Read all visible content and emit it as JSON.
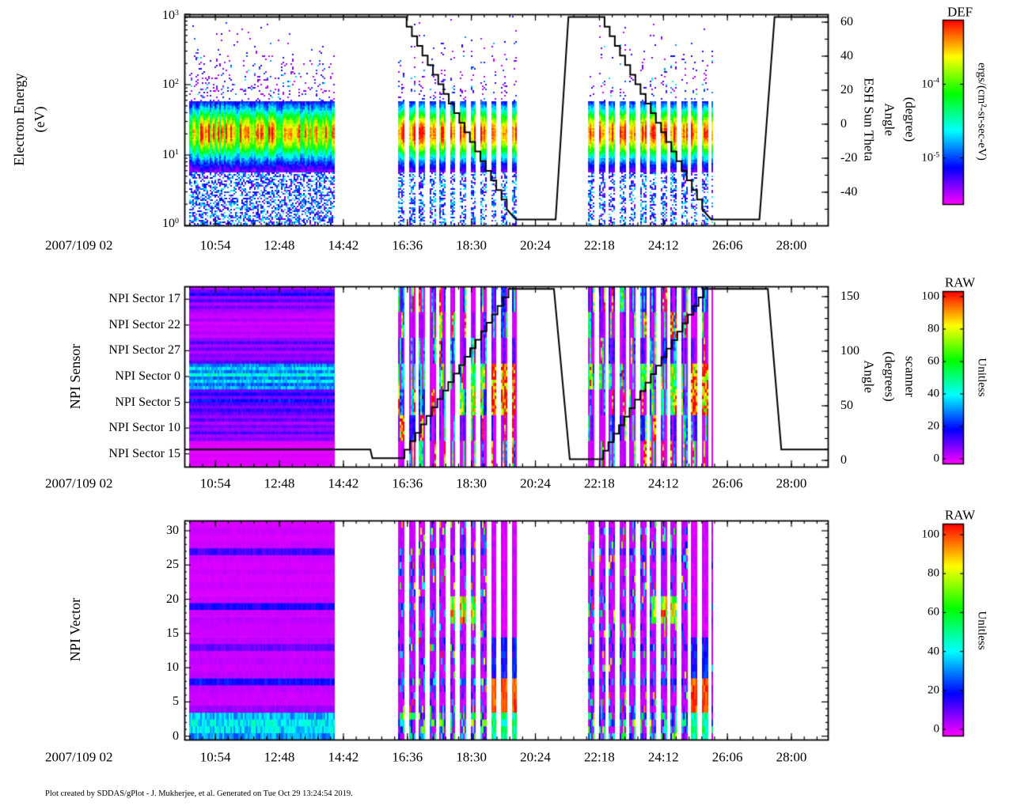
{
  "figure": {
    "footer": "Plot created by SDDAS/gPlot - J. Mukherjee, et al.  Generated on Tue Oct 29 13:24:54 2019.",
    "background": "#ffffff",
    "line_color": "#000000"
  },
  "time_axis": {
    "start_label": "2007/109 02",
    "tick_labels": [
      "10:54",
      "12:48",
      "14:42",
      "16:36",
      "18:30",
      "20:24",
      "22:18",
      "24:12",
      "26:06",
      "28:00"
    ],
    "tick_hours": [
      10.9,
      12.8,
      14.7,
      16.6,
      18.5,
      20.4,
      22.3,
      24.2,
      26.1,
      28.0
    ],
    "range_hours": [
      9.98,
      29.08
    ],
    "minor_step_hours": 0.38
  },
  "stripe": {
    "period": 0.305,
    "duty": 0.6
  },
  "data_segments": [
    {
      "t0": 10.12,
      "t1": 14.45,
      "striped": false
    },
    {
      "t0": 16.33,
      "t1": 19.98,
      "striped": true
    },
    {
      "t0": 21.98,
      "t1": 25.68,
      "striped": true
    }
  ],
  "chart_data": [
    {
      "type": "heatmap",
      "name": "electron-energy-spectrogram",
      "ylabel_lines": [
        "Electron Energy",
        "(eV)"
      ],
      "y_scale": "log",
      "y_range": [
        1,
        1000
      ],
      "y_tick_labels": [
        {
          "base": "10",
          "exp": "3"
        },
        {
          "base": "10",
          "exp": "2"
        },
        {
          "base": "10",
          "exp": "1"
        },
        {
          "base": "10",
          "exp": "0"
        }
      ],
      "colorbar": {
        "title": "DEF",
        "unit": "ergs/(cm²-sr-sec-eV)",
        "scale": "log",
        "tick_labels": [
          {
            "base": "10",
            "exp": "-4",
            "frac": 0.35
          },
          {
            "base": "10",
            "exp": "-5",
            "frac": 0.75
          }
        ]
      },
      "right_axis": {
        "title_lines": [
          "ESH Sun Theta",
          "Angle",
          "(degree)"
        ],
        "tick_values": [
          60,
          40,
          20,
          0,
          -20,
          -40
        ],
        "unit": "degree"
      },
      "spectrum_model": {
        "peak_def_norm": 0.98,
        "band_center_log10_ev": 1.32,
        "band_sigma_log10": 0.27,
        "description": "Intense band ~8-40 eV with red/orange core near 20 eV, green/cyan shoulders, sparse magenta-blue points above ~60 eV and scattered cyan/blue below ~8 eV; vertical striping in all data segments"
      },
      "overlay_line": [
        {
          "type": "flat",
          "t0": 9.98,
          "t1": 16.42,
          "v": 63
        },
        {
          "type": "stair",
          "t0": 16.42,
          "t1": 19.55,
          "v0": 63,
          "v1": -50,
          "steps": 20
        },
        {
          "type": "line",
          "t0": 19.55,
          "t1": 19.82,
          "v0": -50,
          "v1": -56
        },
        {
          "type": "flat",
          "t0": 19.82,
          "t1": 21.0,
          "v": -56
        },
        {
          "type": "line",
          "t0": 21.0,
          "t1": 21.38,
          "v0": -56,
          "v1": 63
        },
        {
          "type": "flat",
          "t0": 21.38,
          "t1": 22.3,
          "v": 63
        },
        {
          "type": "stair",
          "t0": 22.3,
          "t1": 25.35,
          "v0": 63,
          "v1": -50,
          "steps": 20
        },
        {
          "type": "line",
          "t0": 25.35,
          "t1": 25.62,
          "v0": -50,
          "v1": -56
        },
        {
          "type": "flat",
          "t0": 25.62,
          "t1": 27.05,
          "v": -56
        },
        {
          "type": "line",
          "t0": 27.05,
          "t1": 27.5,
          "v0": -56,
          "v1": 63
        },
        {
          "type": "flat",
          "t0": 27.5,
          "t1": 29.08,
          "v": 63
        }
      ]
    },
    {
      "type": "heatmap",
      "name": "npi-sensor-spectrogram",
      "ylabel": "NPI Sensor",
      "categories": [
        "NPI Sector 17",
        "NPI Sector 22",
        "NPI Sector 27",
        "NPI Sector 0",
        "NPI Sector 5",
        "NPI Sector 10",
        "NPI Sector 15"
      ],
      "colorbar": {
        "title": "RAW",
        "unit": "Unitless",
        "tick_labels": [
          "100",
          "80",
          "60",
          "40",
          "20",
          "0"
        ],
        "range": [
          0,
          100
        ]
      },
      "right_axis": {
        "title_lines": [
          "Angle",
          "(degrees)",
          "scanner"
        ],
        "tick_values": [
          150,
          100,
          50,
          0
        ],
        "unit": "degrees"
      },
      "band_subvalues": [
        [
          6,
          12,
          18,
          8,
          14,
          6,
          11,
          7
        ],
        [
          5,
          4,
          7,
          3,
          5,
          4,
          6,
          4
        ],
        [
          8,
          14,
          7,
          12,
          6,
          10,
          8,
          13
        ],
        [
          30,
          38,
          32,
          42,
          30,
          38,
          28,
          34
        ],
        [
          12,
          18,
          10,
          22,
          14,
          10,
          16,
          12
        ],
        [
          8,
          13,
          6,
          11,
          8,
          14,
          7,
          10
        ],
        [
          3,
          2,
          4,
          2,
          3,
          2,
          3,
          2
        ]
      ],
      "events": [
        {
          "t0": 18.4,
          "t1": 18.85,
          "b0": 3,
          "b1": 4,
          "v": [
            50,
            95
          ]
        },
        {
          "t0": 18.95,
          "t1": 19.8,
          "b0": 3,
          "b1": 4,
          "v": [
            82,
            100
          ]
        },
        {
          "t0": 19.8,
          "t1": 19.98,
          "b0": 0,
          "b1": 6,
          "v": [
            1,
            4
          ]
        },
        {
          "t0": 24.4,
          "t1": 24.8,
          "b0": 3,
          "b1": 4,
          "v": [
            50,
            95
          ]
        },
        {
          "t0": 24.9,
          "t1": 25.55,
          "b0": 3,
          "b1": 4,
          "v": [
            82,
            100
          ]
        },
        {
          "t0": 25.55,
          "t1": 25.68,
          "b0": 0,
          "b1": 6,
          "v": [
            1,
            4
          ]
        }
      ],
      "overlay_line": [
        {
          "type": "flat",
          "t0": 9.98,
          "t1": 15.5,
          "v": 10
        },
        {
          "type": "line",
          "t0": 15.5,
          "t1": 15.56,
          "v0": 10,
          "v1": 2
        },
        {
          "type": "flat",
          "t0": 15.56,
          "t1": 16.35,
          "v": 2
        },
        {
          "type": "stair",
          "t0": 16.35,
          "t1": 19.6,
          "v0": 2,
          "v1": 157,
          "steps": 20
        },
        {
          "type": "flat",
          "t0": 19.6,
          "t1": 20.95,
          "v": 157
        },
        {
          "type": "line",
          "t0": 20.95,
          "t1": 21.42,
          "v0": 157,
          "v1": 1
        },
        {
          "type": "flat",
          "t0": 21.42,
          "t1": 22.25,
          "v": 1
        },
        {
          "type": "stair",
          "t0": 22.25,
          "t1": 25.4,
          "v0": 1,
          "v1": 157,
          "steps": 20
        },
        {
          "type": "flat",
          "t0": 25.4,
          "t1": 27.3,
          "v": 157
        },
        {
          "type": "line",
          "t0": 27.3,
          "t1": 27.7,
          "v0": 157,
          "v1": 10
        },
        {
          "type": "flat",
          "t0": 27.7,
          "t1": 29.08,
          "v": 10
        }
      ]
    },
    {
      "type": "heatmap",
      "name": "npi-vector-spectrogram",
      "ylabel": "NPI Vector",
      "y_range": [
        0,
        31
      ],
      "y_tick_labels": [
        "30",
        "25",
        "20",
        "15",
        "10",
        "5",
        "0"
      ],
      "y_tick_values": [
        30,
        25,
        20,
        15,
        10,
        5,
        0
      ],
      "colorbar": {
        "title": "RAW",
        "unit": "Unitless",
        "tick_labels": [
          "100",
          "80",
          "60",
          "40",
          "20",
          "0"
        ],
        "range": [
          0,
          100
        ]
      },
      "row_values": [
        32,
        38,
        40,
        34,
        8,
        4,
        4,
        5,
        20,
        5,
        4,
        5,
        4,
        12,
        5,
        4,
        4,
        5,
        4,
        18,
        4,
        3,
        4,
        3,
        4,
        3,
        4,
        15,
        4,
        3,
        4,
        3
      ],
      "events": [
        {
          "t0": 18.95,
          "t1": 19.85,
          "r0": 4,
          "r1": 8,
          "v": [
            88,
            100
          ]
        },
        {
          "t0": 18.95,
          "t1": 19.85,
          "r0": 0,
          "r1": 3,
          "v": [
            38,
            60
          ]
        },
        {
          "t0": 18.95,
          "t1": 19.85,
          "r0": 9,
          "r1": 14,
          "v": [
            12,
            28
          ]
        },
        {
          "t0": 18.95,
          "t1": 19.85,
          "r0": 15,
          "r1": 31,
          "v": [
            1,
            5
          ]
        },
        {
          "t0": 17.85,
          "t1": 18.65,
          "r0": 17,
          "r1": 20,
          "v": [
            45,
            100
          ]
        },
        {
          "t0": 24.9,
          "t1": 25.6,
          "r0": 4,
          "r1": 8,
          "v": [
            88,
            100
          ]
        },
        {
          "t0": 24.9,
          "t1": 25.6,
          "r0": 0,
          "r1": 3,
          "v": [
            38,
            60
          ]
        },
        {
          "t0": 24.9,
          "t1": 25.6,
          "r0": 9,
          "r1": 14,
          "v": [
            12,
            28
          ]
        },
        {
          "t0": 24.9,
          "t1": 25.6,
          "r0": 15,
          "r1": 31,
          "v": [
            1,
            5
          ]
        },
        {
          "t0": 23.85,
          "t1": 24.65,
          "r0": 17,
          "r1": 20,
          "v": [
            45,
            100
          ]
        }
      ]
    }
  ]
}
